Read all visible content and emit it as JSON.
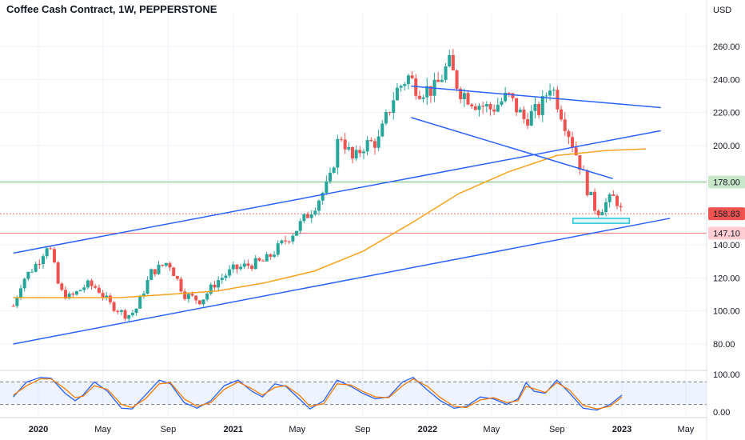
{
  "header": {
    "title": "Coffee Cash Contract, 1W, PEPPERSTONE",
    "currency": "USD"
  },
  "colors": {
    "up": "#26a69a",
    "down": "#ef5350",
    "trendline": "#2962ff",
    "ma": "#f7a21b",
    "stoch_k": "#2962ff",
    "stoch_d": "#f57c00",
    "support_box": "#26c6da",
    "level_green": "#4caf50",
    "level_red": "#ef5350"
  },
  "chart_data": [
    {
      "type": "candlestick",
      "title": "Coffee Cash Contract, 1W, PEPPERSTONE",
      "y_unit": "USD",
      "ylim": [
        70,
        270
      ],
      "y_ticks": [
        {
          "value": 260,
          "label": "260.00"
        },
        {
          "value": 240,
          "label": "240.00"
        },
        {
          "value": 220,
          "label": "220.00"
        },
        {
          "value": 200,
          "label": "200.00"
        },
        {
          "value": 140,
          "label": "140.00"
        },
        {
          "value": 120,
          "label": "120.00"
        },
        {
          "value": 100,
          "label": "100.00"
        },
        {
          "value": 80,
          "label": "80.00"
        }
      ],
      "x_ticks": [
        {
          "label": "2020",
          "date": "2020-01-01",
          "bold": true
        },
        {
          "label": "May",
          "date": "2020-05-01",
          "bold": false
        },
        {
          "label": "Sep",
          "date": "2020-09-01",
          "bold": false
        },
        {
          "label": "2021",
          "date": "2021-01-01",
          "bold": true
        },
        {
          "label": "May",
          "date": "2021-05-01",
          "bold": false
        },
        {
          "label": "Sep",
          "date": "2021-09-01",
          "bold": false
        },
        {
          "label": "2022",
          "date": "2022-01-01",
          "bold": true
        },
        {
          "label": "May",
          "date": "2022-05-01",
          "bold": false
        },
        {
          "label": "Sep",
          "date": "2022-09-01",
          "bold": false
        },
        {
          "label": "2023",
          "date": "2023-01-01",
          "bold": true
        },
        {
          "label": "May",
          "date": "2023-05-01",
          "bold": false
        }
      ],
      "price_path": [
        [
          "2019-11-15",
          103
        ],
        [
          "2019-12-01",
          118
        ],
        [
          "2020-01-01",
          130
        ],
        [
          "2020-01-20",
          142
        ],
        [
          "2020-02-10",
          112
        ],
        [
          "2020-03-01",
          108
        ],
        [
          "2020-04-01",
          116
        ],
        [
          "2020-04-20",
          114
        ],
        [
          "2020-05-15",
          104
        ],
        [
          "2020-06-15",
          97
        ],
        [
          "2020-07-01",
          100
        ],
        [
          "2020-08-01",
          124
        ],
        [
          "2020-08-15",
          126
        ],
        [
          "2020-09-01",
          130
        ],
        [
          "2020-10-01",
          110
        ],
        [
          "2020-11-01",
          106
        ],
        [
          "2020-12-01",
          118
        ],
        [
          "2021-01-01",
          125
        ],
        [
          "2021-02-01",
          128
        ],
        [
          "2021-03-01",
          130
        ],
        [
          "2021-04-01",
          140
        ],
        [
          "2021-05-01",
          150
        ],
        [
          "2021-06-01",
          163
        ],
        [
          "2021-07-01",
          178
        ],
        [
          "2021-07-20",
          208
        ],
        [
          "2021-08-15",
          190
        ],
        [
          "2021-09-01",
          200
        ],
        [
          "2021-10-01",
          203
        ],
        [
          "2021-11-01",
          232
        ],
        [
          "2021-11-25",
          242
        ],
        [
          "2021-12-15",
          234
        ],
        [
          "2022-01-15",
          234
        ],
        [
          "2022-02-10",
          250
        ],
        [
          "2022-03-01",
          234
        ],
        [
          "2022-04-01",
          226
        ],
        [
          "2022-05-01",
          222
        ],
        [
          "2022-06-01",
          230
        ],
        [
          "2022-07-01",
          216
        ],
        [
          "2022-08-01",
          222
        ],
        [
          "2022-08-20",
          238
        ],
        [
          "2022-09-15",
          215
        ],
        [
          "2022-10-15",
          188
        ],
        [
          "2022-11-01",
          170
        ],
        [
          "2022-11-15",
          160
        ],
        [
          "2022-12-01",
          165
        ],
        [
          "2022-12-20",
          169
        ],
        [
          "2023-01-01",
          159
        ]
      ],
      "moving_average": [
        [
          "2019-11-15",
          108
        ],
        [
          "2020-06-01",
          108
        ],
        [
          "2020-12-01",
          112
        ],
        [
          "2021-03-01",
          117
        ],
        [
          "2021-06-01",
          124
        ],
        [
          "2021-09-01",
          136
        ],
        [
          "2021-12-01",
          153
        ],
        [
          "2022-03-01",
          171
        ],
        [
          "2022-06-01",
          184
        ],
        [
          "2022-09-01",
          194
        ],
        [
          "2022-12-01",
          197
        ],
        [
          "2023-02-15",
          198
        ]
      ],
      "trendlines": [
        {
          "from": [
            "2019-11-15",
            80
          ],
          "to": [
            "2023-04-01",
            156
          ]
        },
        {
          "from": [
            "2019-11-15",
            135
          ],
          "to": [
            "2023-03-15",
            209
          ]
        },
        {
          "from": [
            "2021-12-01",
            236
          ],
          "to": [
            "2023-03-15",
            223
          ]
        },
        {
          "from": [
            "2021-12-01",
            217
          ],
          "to": [
            "2022-12-15",
            180
          ]
        }
      ],
      "support_zone": {
        "from": "2022-10-01",
        "to": "2023-01-15",
        "low": 153,
        "high": 156
      },
      "levels": [
        {
          "value": 178,
          "label": "178.00",
          "color": "#4caf50",
          "style": "solid",
          "label_bg": "#c8e6c9",
          "label_fg": "#131722"
        },
        {
          "value": 158.83,
          "label": "158.83",
          "color": "#ef5350",
          "style": "dotted",
          "label_bg": "#ef5350",
          "label_fg": "#ffffff"
        },
        {
          "value": 147.1,
          "label": "147.10",
          "color": "#ef5350",
          "style": "solid",
          "label_bg": "#ffcdd2",
          "label_fg": "#131722"
        }
      ]
    },
    {
      "type": "line",
      "title": "",
      "ylim": [
        0,
        100
      ],
      "band": [
        20,
        80
      ],
      "y_ticks": [
        {
          "value": 100,
          "label": "100.00"
        },
        {
          "value": 0,
          "label": "0.00"
        }
      ],
      "series": [
        {
          "key": "k",
          "points": [
            [
              "2019-11-15",
              40
            ],
            [
              "2019-12-10",
              80
            ],
            [
              "2020-01-05",
              92
            ],
            [
              "2020-01-25",
              90
            ],
            [
              "2020-02-20",
              50
            ],
            [
              "2020-03-10",
              30
            ],
            [
              "2020-03-25",
              45
            ],
            [
              "2020-04-15",
              80
            ],
            [
              "2020-05-10",
              55
            ],
            [
              "2020-06-05",
              10
            ],
            [
              "2020-06-25",
              8
            ],
            [
              "2020-07-20",
              45
            ],
            [
              "2020-08-15",
              85
            ],
            [
              "2020-09-05",
              75
            ],
            [
              "2020-10-01",
              25
            ],
            [
              "2020-10-25",
              10
            ],
            [
              "2020-11-20",
              30
            ],
            [
              "2020-12-15",
              70
            ],
            [
              "2021-01-10",
              85
            ],
            [
              "2021-02-05",
              55
            ],
            [
              "2021-02-25",
              40
            ],
            [
              "2021-03-20",
              75
            ],
            [
              "2021-04-10",
              68
            ],
            [
              "2021-05-05",
              35
            ],
            [
              "2021-05-25",
              8
            ],
            [
              "2021-06-20",
              30
            ],
            [
              "2021-07-15",
              85
            ],
            [
              "2021-08-10",
              68
            ],
            [
              "2021-09-01",
              50
            ],
            [
              "2021-09-25",
              35
            ],
            [
              "2021-10-20",
              40
            ],
            [
              "2021-11-15",
              80
            ],
            [
              "2021-12-05",
              92
            ],
            [
              "2022-01-01",
              58
            ],
            [
              "2022-01-25",
              30
            ],
            [
              "2022-02-20",
              10
            ],
            [
              "2022-03-15",
              15
            ],
            [
              "2022-04-10",
              40
            ],
            [
              "2022-05-05",
              35
            ],
            [
              "2022-05-30",
              20
            ],
            [
              "2022-06-20",
              35
            ],
            [
              "2022-07-05",
              78
            ],
            [
              "2022-07-20",
              55
            ],
            [
              "2022-08-10",
              50
            ],
            [
              "2022-09-01",
              85
            ],
            [
              "2022-09-25",
              50
            ],
            [
              "2022-10-20",
              10
            ],
            [
              "2022-11-15",
              5
            ],
            [
              "2022-12-10",
              20
            ],
            [
              "2023-01-01",
              45
            ]
          ]
        },
        {
          "key": "d",
          "points": [
            [
              "2019-11-15",
              45
            ],
            [
              "2019-12-10",
              70
            ],
            [
              "2020-01-05",
              88
            ],
            [
              "2020-01-25",
              88
            ],
            [
              "2020-02-20",
              62
            ],
            [
              "2020-03-10",
              38
            ],
            [
              "2020-03-25",
              42
            ],
            [
              "2020-04-15",
              70
            ],
            [
              "2020-05-10",
              60
            ],
            [
              "2020-06-05",
              20
            ],
            [
              "2020-06-25",
              12
            ],
            [
              "2020-07-20",
              35
            ],
            [
              "2020-08-15",
              75
            ],
            [
              "2020-09-05",
              78
            ],
            [
              "2020-10-01",
              35
            ],
            [
              "2020-10-25",
              15
            ],
            [
              "2020-11-20",
              25
            ],
            [
              "2020-12-15",
              60
            ],
            [
              "2021-01-10",
              80
            ],
            [
              "2021-02-05",
              62
            ],
            [
              "2021-02-25",
              45
            ],
            [
              "2021-03-20",
              65
            ],
            [
              "2021-04-10",
              70
            ],
            [
              "2021-05-05",
              45
            ],
            [
              "2021-05-25",
              15
            ],
            [
              "2021-06-20",
              22
            ],
            [
              "2021-07-15",
              75
            ],
            [
              "2021-08-10",
              72
            ],
            [
              "2021-09-01",
              55
            ],
            [
              "2021-09-25",
              40
            ],
            [
              "2021-10-20",
              38
            ],
            [
              "2021-11-15",
              70
            ],
            [
              "2021-12-05",
              88
            ],
            [
              "2022-01-01",
              68
            ],
            [
              "2022-01-25",
              38
            ],
            [
              "2022-02-20",
              15
            ],
            [
              "2022-03-15",
              12
            ],
            [
              "2022-04-10",
              32
            ],
            [
              "2022-05-05",
              38
            ],
            [
              "2022-05-30",
              25
            ],
            [
              "2022-06-20",
              30
            ],
            [
              "2022-07-05",
              68
            ],
            [
              "2022-07-20",
              62
            ],
            [
              "2022-08-10",
              52
            ],
            [
              "2022-09-01",
              78
            ],
            [
              "2022-09-25",
              58
            ],
            [
              "2022-10-20",
              18
            ],
            [
              "2022-11-15",
              8
            ],
            [
              "2022-12-10",
              15
            ],
            [
              "2023-01-01",
              40
            ]
          ]
        }
      ]
    }
  ]
}
